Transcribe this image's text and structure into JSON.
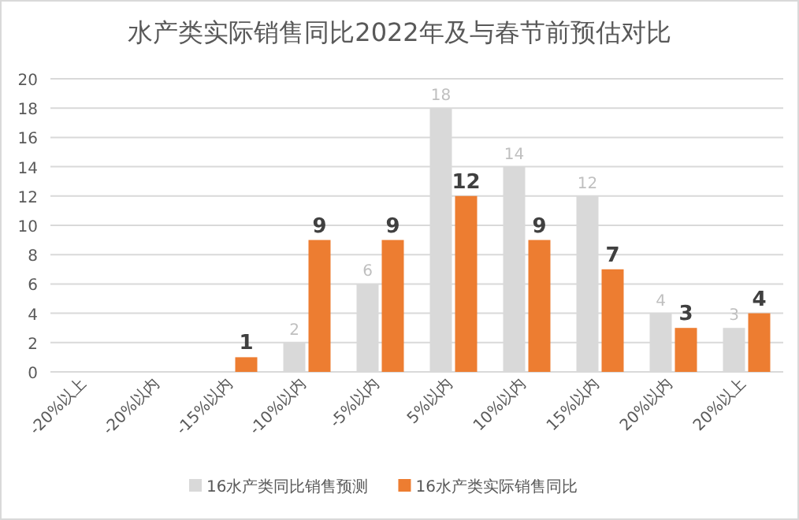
{
  "chart_data": {
    "type": "bar",
    "title": "水产类实际销售同比2022年及与春节前预估对比",
    "categories": [
      "-20%以上",
      "-20%以内",
      "-15%以内",
      "-10%以内",
      "-5%以内",
      "5%以内",
      "10%以内",
      "15%以内",
      "20%以内",
      "20%以上"
    ],
    "series": [
      {
        "name": "16水产类同比销售预测",
        "color": "#d9d9d9",
        "values": [
          0,
          0,
          0,
          2,
          6,
          18,
          14,
          12,
          4,
          3
        ],
        "value_labels": [
          null,
          null,
          null,
          "2",
          "6",
          "18",
          "14",
          "12",
          "4",
          "3"
        ]
      },
      {
        "name": "16水产类实际销售同比",
        "color": "#ed7d31",
        "values": [
          0,
          0,
          1,
          9,
          9,
          12,
          9,
          7,
          3,
          4
        ],
        "value_labels": [
          null,
          null,
          "1",
          "9",
          "9",
          "12",
          "9",
          "7",
          "3",
          "4"
        ]
      }
    ],
    "ylim": [
      0,
      20
    ],
    "yticks": [
      0,
      2,
      4,
      6,
      8,
      10,
      12,
      14,
      16,
      18,
      20
    ],
    "grid": "y",
    "legend": "bottom"
  }
}
